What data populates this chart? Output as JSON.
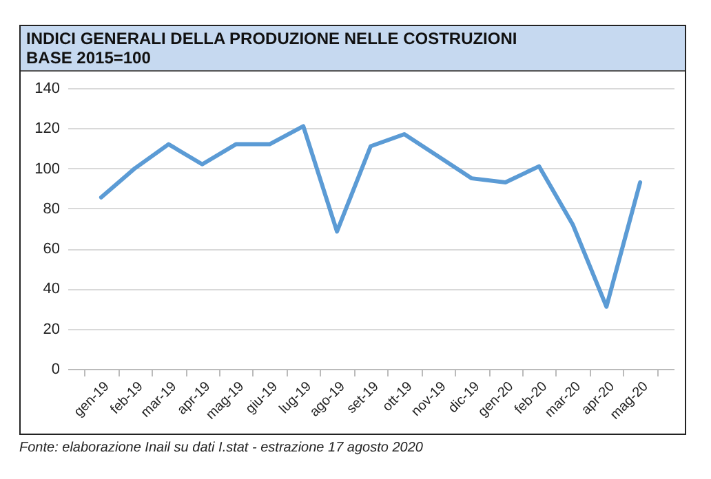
{
  "chart_data": {
    "type": "line",
    "title": "INDICI GENERALI DELLA PRODUZIONE NELLE COSTRUZIONI",
    "subtitle": "BASE 2015=100",
    "annotations": [
      "Fonte: elaborazione Inail su dati I.stat - estrazione 17 agosto 2020"
    ],
    "categories": [
      "gen-19",
      "feb-19",
      "mar-19",
      "apr-19",
      "mag-19",
      "giu-19",
      "lug-19",
      "ago-19",
      "set-19",
      "ott-19",
      "nov-19",
      "dic-19",
      "gen-20",
      "feb-20",
      "mar-20",
      "apr-20",
      "mag-20"
    ],
    "series": [
      {
        "color": "#5b9bd5",
        "values": [
          85.5,
          100,
          112,
          102,
          112,
          112,
          121,
          68.5,
          111,
          117,
          106,
          95,
          93,
          101,
          72,
          31,
          93
        ]
      }
    ],
    "ylim": [
      0,
      140
    ],
    "yticks": [
      0,
      20,
      40,
      60,
      80,
      100,
      120,
      140
    ],
    "grid": "y",
    "legend": false,
    "marker": "none",
    "line_style": "solid"
  }
}
